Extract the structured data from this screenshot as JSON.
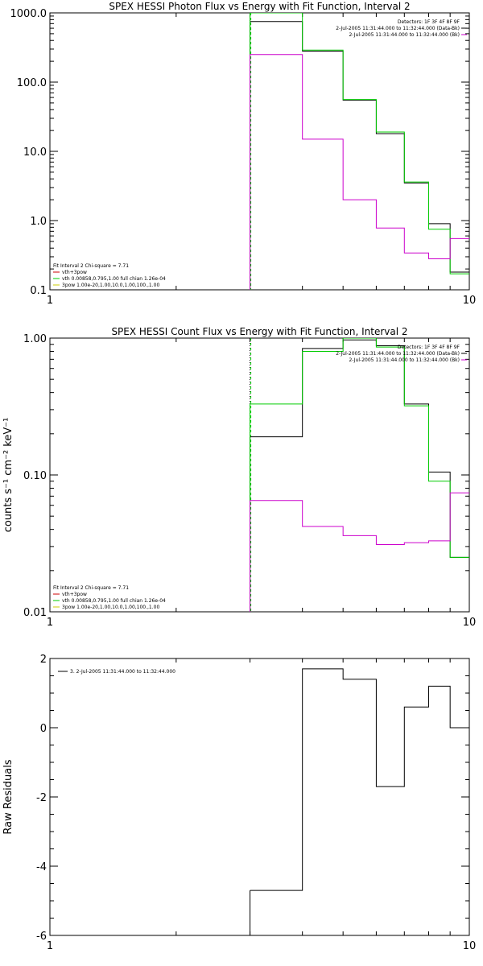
{
  "chart_data": [
    {
      "type": "line",
      "title": "SPEX HESSI Photon Flux vs Energy with Fit Function, Interval 2",
      "xlabel": "",
      "ylabel": "",
      "xscale": "log",
      "yscale": "log",
      "xlim": [
        1,
        10
      ],
      "ylim": [
        0.1,
        1000
      ],
      "x_ticklabels": [
        {
          "v": 1,
          "t": "1"
        },
        {
          "v": 10,
          "t": "10"
        }
      ],
      "y_ticklabels": [
        {
          "v": 0.1,
          "t": "0.1"
        },
        {
          "v": 1,
          "t": "1.0"
        },
        {
          "v": 10,
          "t": "10.0"
        },
        {
          "v": 100,
          "t": "100.0"
        },
        {
          "v": 1000,
          "t": "1000.0"
        }
      ],
      "edges": [
        3,
        4,
        5,
        6,
        7,
        8,
        9,
        10
      ],
      "vline": 3,
      "series": [
        {
          "name": "",
          "color": "#000000",
          "values": [
            750,
            280,
            55,
            18,
            3.5,
            0.9,
            0.18
          ]
        },
        {
          "name": "",
          "color": "#00cc00",
          "values": [
            1200,
            290,
            56,
            19,
            3.6,
            0.75,
            0.17
          ]
        },
        {
          "name": "",
          "color": "#cc00cc",
          "values": [
            250,
            15,
            2.0,
            0.78,
            0.34,
            0.28,
            0.55
          ]
        }
      ],
      "legend_top_right": [
        "Detectors: 1F 3F 4F 8F 9F",
        "2-Jul-2005 11:31:44.000 to 11:32:44.000 (Data-Bk)",
        "2-Jul-2005 11:31:44.000 to 11:32:44.000 (Bk)"
      ],
      "legend_top_right_colors": [
        "",
        "#000000",
        "#cc00cc"
      ],
      "legend_bottom_left": {
        "header": "Fit Interval 2   Chi-square = 7.71",
        "items": [
          {
            "text": "vth+3pow",
            "color": "#cc0000"
          },
          {
            "text": "vth 0.00858,0.795,1.00  full chian 1.26e-04",
            "color": "#00cc00"
          },
          {
            "text": "3pow 1.00e-20,1.00,10.0,1.00,100.,1.00",
            "color": "#cccc00"
          }
        ]
      }
    },
    {
      "type": "line",
      "title": "SPEX HESSI Count Flux vs Energy with Fit Function, Interval 2",
      "xlabel": "",
      "ylabel": "counts s⁻¹ cm⁻² keV⁻¹",
      "xscale": "log",
      "yscale": "log",
      "xlim": [
        1,
        10
      ],
      "ylim": [
        0.01,
        1
      ],
      "x_ticklabels": [
        {
          "v": 1,
          "t": "1"
        },
        {
          "v": 10,
          "t": "10"
        }
      ],
      "y_ticklabels": [
        {
          "v": 0.01,
          "t": "0.01"
        },
        {
          "v": 0.1,
          "t": "0.10"
        },
        {
          "v": 1,
          "t": "1.00"
        }
      ],
      "edges": [
        3,
        4,
        5,
        6,
        7,
        8,
        9,
        10
      ],
      "vline": 3,
      "series": [
        {
          "name": "",
          "color": "#000000",
          "values": [
            0.19,
            0.84,
            0.97,
            0.88,
            0.33,
            0.105,
            0.025
          ]
        },
        {
          "name": "",
          "color": "#00cc00",
          "values": [
            0.33,
            0.8,
            1.0,
            0.86,
            0.32,
            0.09,
            0.025
          ]
        },
        {
          "name": "",
          "color": "#cc00cc",
          "values": [
            0.065,
            0.042,
            0.036,
            0.031,
            0.032,
            0.033,
            0.074
          ]
        }
      ],
      "legend_top_right": [
        "Detectors: 1F 3F 4F 8F 9F",
        "2-Jul-2005 11:31:44.000 to 11:32:44.000 (Data-Bk)",
        "2-Jul-2005 11:31:44.000 to 11:32:44.000 (Bk)"
      ],
      "legend_top_right_colors": [
        "",
        "#000000",
        "#cc00cc"
      ],
      "legend_bottom_left": {
        "header": "Fit Interval 2   Chi-square = 7.71",
        "items": [
          {
            "text": "vth+3pow",
            "color": "#cc0000"
          },
          {
            "text": "vth 0.00858,0.795,1.00  full chian 1.26e-04",
            "color": "#00cc00"
          },
          {
            "text": "3pow 1.00e-20,1.00,10.0,1.00,100.,1.00",
            "color": "#cccc00"
          }
        ]
      }
    },
    {
      "type": "line",
      "title": "",
      "xlabel": "",
      "ylabel": "Raw Residuals",
      "xscale": "log",
      "yscale": "linear",
      "xlim": [
        1,
        10
      ],
      "ylim": [
        -6,
        2
      ],
      "x_ticklabels": [
        {
          "v": 1,
          "t": "1"
        },
        {
          "v": 10,
          "t": "10"
        }
      ],
      "y_ticklabels": [
        {
          "v": -6,
          "t": "-6"
        },
        {
          "v": -4,
          "t": "-4"
        },
        {
          "v": -2,
          "t": "-2"
        },
        {
          "v": 0,
          "t": "0"
        },
        {
          "v": 2,
          "t": "2"
        }
      ],
      "edges": [
        3,
        4,
        5,
        6,
        7,
        8,
        9,
        10
      ],
      "series": [
        {
          "name": "",
          "color": "#000000",
          "values": [
            -4.7,
            1.7,
            1.4,
            -1.7,
            0.6,
            1.2,
            0.0
          ]
        }
      ],
      "legend_top_left": "3. 2-Jul-2005 11:31:44.000 to 11:32:44.000"
    }
  ]
}
